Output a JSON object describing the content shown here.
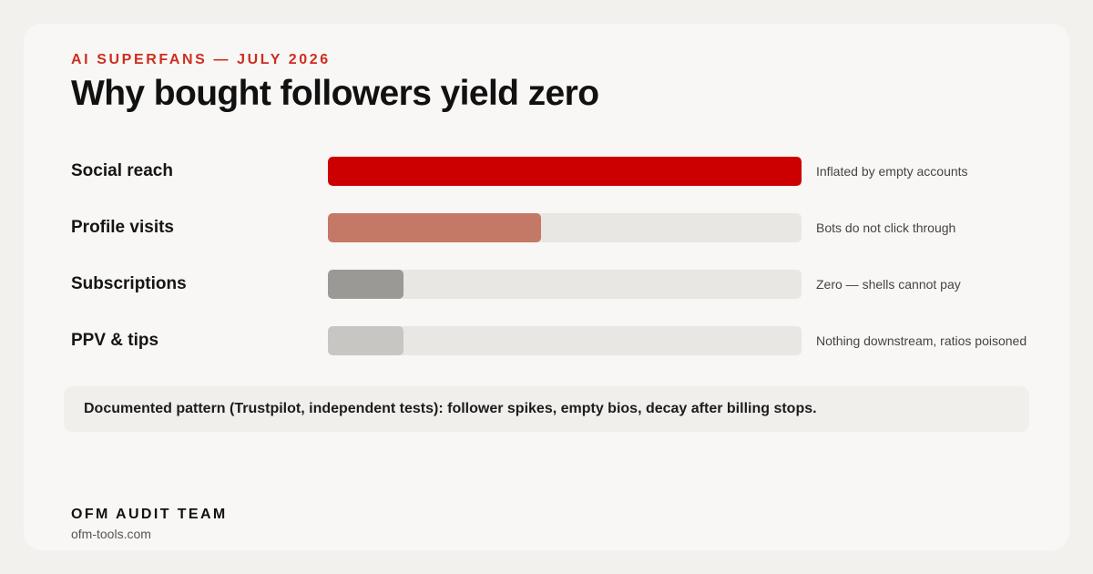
{
  "header": {
    "kicker": "AI SUPERFANS — JULY 2026",
    "title": "Why bought followers yield zero"
  },
  "chart_data": {
    "type": "bar",
    "orientation": "horizontal",
    "title": "",
    "xlabel": "",
    "ylabel": "",
    "xlim": [
      0,
      100
    ],
    "grid": false,
    "legend": "none",
    "categories": [
      "Social reach",
      "Profile visits",
      "Subscriptions",
      "PPV & tips"
    ],
    "values": [
      100,
      45,
      16,
      16
    ],
    "notes": [
      "Inflated by empty accounts",
      "Bots do not click through",
      "Zero — shells cannot pay",
      "Nothing downstream, ratios poisoned"
    ],
    "colors": [
      "#cc0000",
      "#c47866",
      "#9b9995",
      "#c8c6c2"
    ],
    "track_color": "#e9e7e3"
  },
  "callout": {
    "text": "Documented pattern (Trustpilot, independent tests): follower spikes, empty bios, decay after billing stops."
  },
  "footer": {
    "team": "OFM AUDIT TEAM",
    "site": "ofm-tools.com"
  }
}
